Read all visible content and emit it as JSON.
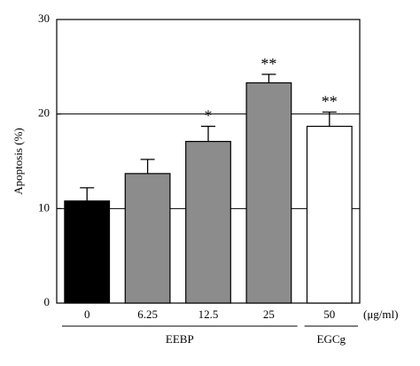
{
  "chart_data": {
    "type": "bar",
    "y_label": "Apoptosis (%)",
    "x_unit": "(μg/ml)",
    "categories": [
      "0",
      "6.25",
      "12.5",
      "25",
      "50"
    ],
    "values": [
      10.8,
      13.7,
      17.1,
      23.3,
      18.7
    ],
    "errors": [
      1.4,
      1.5,
      1.6,
      0.9,
      1.5
    ],
    "colors": [
      "#000000",
      "#8c8c8c",
      "#8c8c8c",
      "#8c8c8c",
      "#ffffff"
    ],
    "annotations": [
      {
        "index": 2,
        "text": "*"
      },
      {
        "index": 3,
        "text": "**"
      },
      {
        "index": 4,
        "text": "**"
      }
    ],
    "groups": [
      {
        "label": "EEBP",
        "from": 0,
        "to": 3
      },
      {
        "label": "EGCg",
        "from": 4,
        "to": 4
      }
    ],
    "ylim": [
      0,
      30
    ],
    "yticks": [
      0,
      10,
      20,
      30
    ],
    "grid": true
  }
}
